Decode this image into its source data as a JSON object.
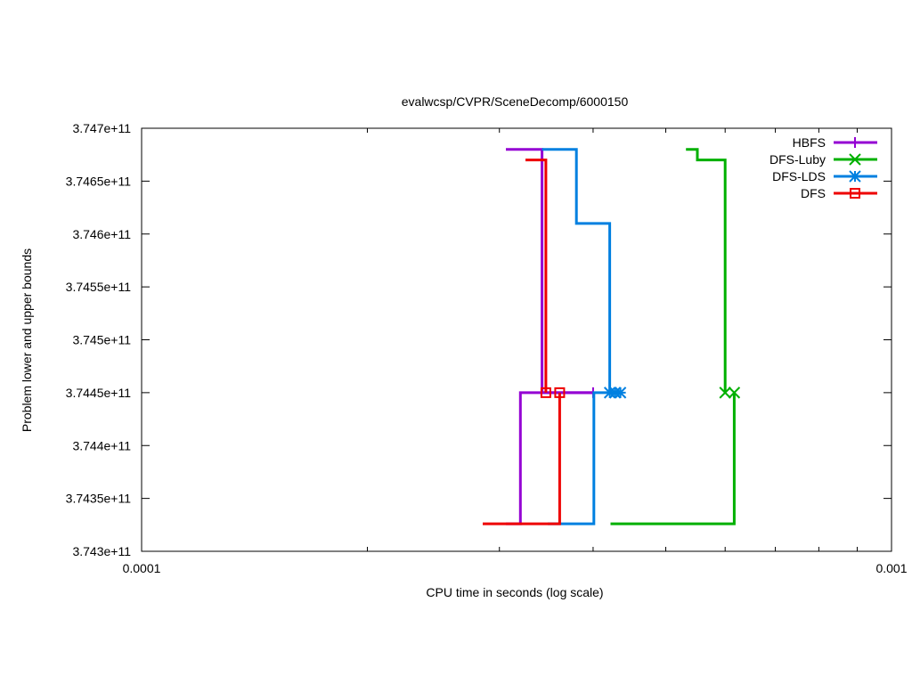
{
  "chart_data": {
    "type": "line",
    "title": "evalwcsp/CVPR/SceneDecomp/6000150",
    "xlabel": "CPU time in seconds (log scale)",
    "ylabel": "Problem lower and upper bounds",
    "x_scale": "log",
    "xlim": [
      0.0001,
      0.001
    ],
    "ylim": [
      374300000000,
      374700000000
    ],
    "x_ticks": [
      {
        "value": 0.0001,
        "label": "0.0001"
      },
      {
        "value": 0.001,
        "label": "0.001"
      }
    ],
    "y_ticks": [
      {
        "value": 374300000000,
        "label": "3.743e+11"
      },
      {
        "value": 374350000000,
        "label": "3.7435e+11"
      },
      {
        "value": 374400000000,
        "label": "3.744e+11"
      },
      {
        "value": 374450000000,
        "label": "3.7445e+11"
      },
      {
        "value": 374500000000,
        "label": "3.745e+11"
      },
      {
        "value": 374550000000,
        "label": "3.7455e+11"
      },
      {
        "value": 374600000000,
        "label": "3.746e+11"
      },
      {
        "value": 374650000000,
        "label": "3.7465e+11"
      },
      {
        "value": 374700000000,
        "label": "3.747e+11"
      }
    ],
    "grid": false,
    "legend_position": "top-right",
    "series": [
      {
        "name": "HBFS",
        "color": "#9400d3",
        "marker": "plus",
        "upper": [
          [
            0.000306,
            374680000000
          ],
          [
            0.000342,
            374680000000
          ],
          [
            0.000342,
            374450000000
          ],
          [
            0.0004,
            374450000000
          ]
        ],
        "lower": [
          [
            0.000306,
            374326000000
          ],
          [
            0.00032,
            374326000000
          ],
          [
            0.00032,
            374450000000
          ],
          [
            0.0004,
            374450000000
          ]
        ],
        "markers": [
          [
            0.0004,
            374450000000
          ]
        ]
      },
      {
        "name": "DFS-Luby",
        "color": "#00b000",
        "marker": "x",
        "upper": [
          [
            0.000532,
            374680000000
          ],
          [
            0.000551,
            374680000000
          ],
          [
            0.000551,
            374670000000
          ],
          [
            0.0006,
            374670000000
          ],
          [
            0.0006,
            374450000000
          ]
        ],
        "lower": [
          [
            0.000422,
            374326000000
          ],
          [
            0.000617,
            374326000000
          ],
          [
            0.000617,
            374450000000
          ]
        ],
        "markers": [
          [
            0.0006,
            374450000000
          ],
          [
            0.000617,
            374450000000
          ]
        ]
      },
      {
        "name": "DFS-LDS",
        "color": "#0080e0",
        "marker": "star",
        "upper": [
          [
            0.000342,
            374680000000
          ],
          [
            0.00038,
            374680000000
          ],
          [
            0.00038,
            374610000000
          ],
          [
            0.000421,
            374610000000
          ],
          [
            0.000421,
            374450000000
          ],
          [
            0.000435,
            374450000000
          ]
        ],
        "lower": [
          [
            0.000348,
            374326000000
          ],
          [
            0.000401,
            374326000000
          ],
          [
            0.000401,
            374450000000
          ],
          [
            0.000435,
            374450000000
          ]
        ],
        "markers": [
          [
            0.000421,
            374450000000
          ],
          [
            0.000428,
            374450000000
          ],
          [
            0.000435,
            374450000000
          ]
        ]
      },
      {
        "name": "DFS",
        "color": "#ee0000",
        "marker": "box",
        "upper": [
          [
            0.000325,
            374670000000
          ],
          [
            0.000346,
            374670000000
          ],
          [
            0.000346,
            374450000000
          ]
        ],
        "lower": [
          [
            0.000285,
            374326000000
          ],
          [
            0.000361,
            374326000000
          ],
          [
            0.000361,
            374450000000
          ]
        ],
        "markers": [
          [
            0.000346,
            374450000000
          ],
          [
            0.000361,
            374450000000
          ]
        ]
      }
    ]
  }
}
